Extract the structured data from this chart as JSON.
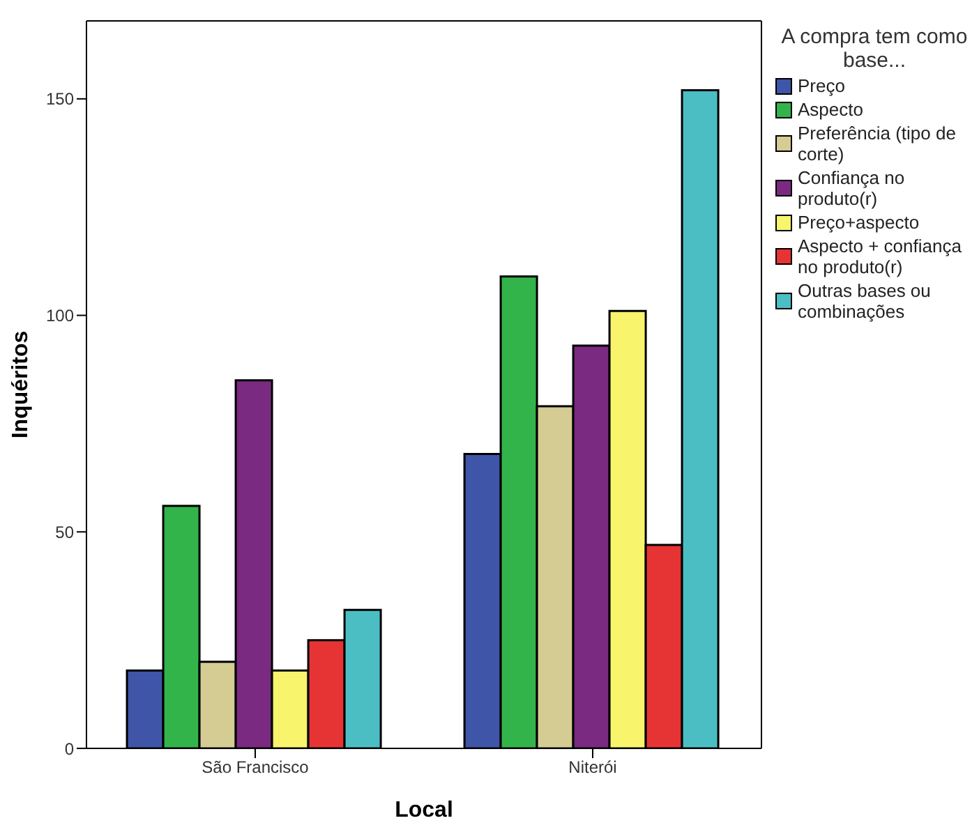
{
  "chart_data": {
    "type": "bar",
    "xlabel": "Local",
    "ylabel": "Inquéritos",
    "legend_title": "A compra tem como base...",
    "legend": "right",
    "categories": [
      "São Francisco",
      "Niterói"
    ],
    "ylim": [
      0,
      168
    ],
    "yticks": [
      0,
      50,
      100,
      150
    ],
    "grid": false,
    "series": [
      {
        "name": "Preço",
        "color": "#3f55a8",
        "values": [
          18,
          68
        ]
      },
      {
        "name": "Aspecto",
        "color": "#33b44a",
        "values": [
          56,
          109
        ]
      },
      {
        "name": "Preferência (tipo de corte)",
        "color": "#d4cc93",
        "values": [
          20,
          79
        ]
      },
      {
        "name": "Confiança no produto(r)",
        "color": "#7a2a80",
        "values": [
          85,
          93
        ]
      },
      {
        "name": "Preço+aspecto",
        "color": "#f8f46c",
        "values": [
          18,
          101
        ]
      },
      {
        "name": "Aspecto + confiança no produto(r)",
        "color": "#e63434",
        "values": [
          25,
          47
        ]
      },
      {
        "name": "Outras bases ou combinações",
        "color": "#4bbec4",
        "values": [
          32,
          152
        ]
      }
    ]
  }
}
